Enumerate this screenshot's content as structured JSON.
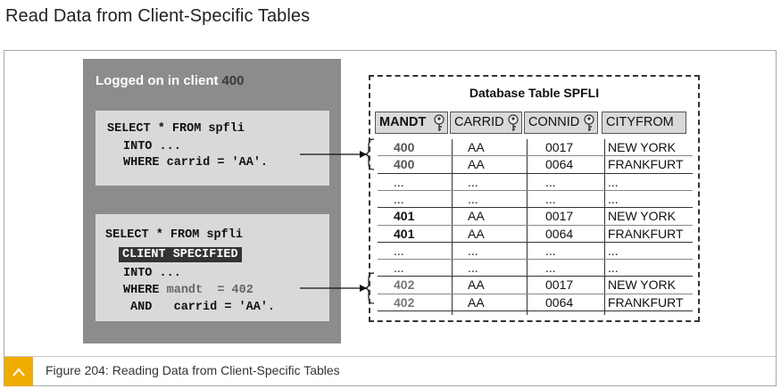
{
  "page_title": "Read Data from Client-Specific Tables",
  "panel": {
    "heading_prefix": "Logged on in client",
    "heading_client": "400"
  },
  "code1": {
    "line1": "SELECT * FROM spfli",
    "line2": "INTO ...",
    "line3": "WHERE carrid = 'AA'."
  },
  "code2": {
    "line1": "SELECT * FROM spfli",
    "line2": "CLIENT SPECIFIED",
    "line3": "INTO ...",
    "line4_kw": "WHERE",
    "line4_cond": "mandt  = 402",
    "line5": "AND   carrid = 'AA'."
  },
  "db_table": {
    "title": "Database Table  SPFLI",
    "columns": [
      "MANDT",
      "CARRID",
      "CONNID",
      "CITYFROM"
    ],
    "key_columns": [
      "MANDT",
      "CARRID",
      "CONNID"
    ],
    "rows": [
      [
        "400",
        "AA",
        "0017",
        "NEW YORK"
      ],
      [
        "400",
        "AA",
        "0064",
        "FRANKFURT"
      ],
      [
        "...",
        "...",
        "...",
        "..."
      ],
      [
        "...",
        "...",
        "...",
        "..."
      ],
      [
        "401",
        "AA",
        "0017",
        "NEW YORK"
      ],
      [
        "401",
        "AA",
        "0064",
        "FRANKFURT"
      ],
      [
        "...",
        "...",
        "...",
        "..."
      ],
      [
        "...",
        "...",
        "...",
        "..."
      ],
      [
        "402",
        "AA",
        "0017",
        "NEW YORK"
      ],
      [
        "402",
        "AA",
        "0064",
        "FRANKFURT"
      ]
    ],
    "row_styles": [
      "mandt-400",
      "mandt-400",
      "",
      "",
      "mandt-bold",
      "mandt-bold",
      "",
      "",
      "mandt-grey",
      "mandt-grey"
    ]
  },
  "caption": "Figure 204: Reading Data from Client-Specific Tables",
  "colors": {
    "panel_grey": "#8c8c8c",
    "code_box": "#d9d9d9",
    "caption_accent": "#f0ab00"
  },
  "icons": {
    "caption": "chevron-up-icon",
    "column_key": "key-icon"
  }
}
